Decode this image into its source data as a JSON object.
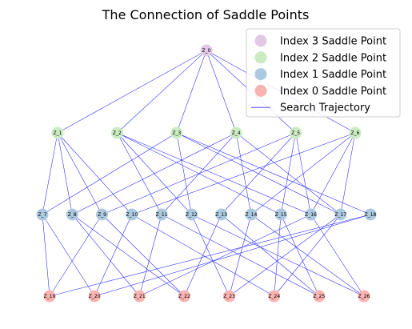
{
  "title": "The Connection of Saddle Points",
  "colors": {
    "index3": "#e1c9e6",
    "index2": "#cbebc3",
    "index1": "#adc9e0",
    "index0": "#f9b3b0",
    "edge": "#3333ff"
  },
  "legend": [
    {
      "label": "Index 3 Saddle Point",
      "kind": "marker",
      "color_key": "index3"
    },
    {
      "label": "Index 2 Saddle Point",
      "kind": "marker",
      "color_key": "index2"
    },
    {
      "label": "Index 1 Saddle Point",
      "kind": "marker",
      "color_key": "index1"
    },
    {
      "label": "Index 0 Saddle Point",
      "kind": "marker",
      "color_key": "index0"
    },
    {
      "label": "Search Trajectory",
      "kind": "line",
      "color_key": "edge"
    }
  ],
  "levels": [
    {
      "index": 3,
      "color_key": "index3",
      "nodes": [
        "Z_0"
      ]
    },
    {
      "index": 2,
      "color_key": "index2",
      "nodes": [
        "Z_1",
        "Z_2",
        "Z_3",
        "Z_4",
        "Z_5",
        "Z_6"
      ]
    },
    {
      "index": 1,
      "color_key": "index1",
      "nodes": [
        "Z_7",
        "Z_8",
        "Z_9",
        "Z_10",
        "Z_11",
        "Z_12",
        "Z_13",
        "Z_14",
        "Z_15",
        "Z_16",
        "Z_17",
        "Z_18"
      ]
    },
    {
      "index": 0,
      "color_key": "index0",
      "nodes": [
        "Z_19",
        "Z_20",
        "Z_21",
        "Z_22",
        "Z_23",
        "Z_24",
        "Z_25",
        "Z_26"
      ]
    }
  ],
  "edges": [
    [
      "Z_0",
      "Z_1"
    ],
    [
      "Z_0",
      "Z_2"
    ],
    [
      "Z_0",
      "Z_3"
    ],
    [
      "Z_0",
      "Z_4"
    ],
    [
      "Z_0",
      "Z_5"
    ],
    [
      "Z_0",
      "Z_6"
    ],
    [
      "Z_1",
      "Z_7"
    ],
    [
      "Z_1",
      "Z_8"
    ],
    [
      "Z_1",
      "Z_9"
    ],
    [
      "Z_1",
      "Z_10"
    ],
    [
      "Z_2",
      "Z_11"
    ],
    [
      "Z_2",
      "Z_12"
    ],
    [
      "Z_2",
      "Z_15"
    ],
    [
      "Z_2",
      "Z_16"
    ],
    [
      "Z_3",
      "Z_7"
    ],
    [
      "Z_3",
      "Z_12"
    ],
    [
      "Z_3",
      "Z_17"
    ],
    [
      "Z_3",
      "Z_18"
    ],
    [
      "Z_4",
      "Z_8"
    ],
    [
      "Z_4",
      "Z_11"
    ],
    [
      "Z_4",
      "Z_14"
    ],
    [
      "Z_4",
      "Z_17"
    ],
    [
      "Z_5",
      "Z_9"
    ],
    [
      "Z_5",
      "Z_13"
    ],
    [
      "Z_5",
      "Z_15"
    ],
    [
      "Z_5",
      "Z_16"
    ],
    [
      "Z_6",
      "Z_10"
    ],
    [
      "Z_6",
      "Z_14"
    ],
    [
      "Z_6",
      "Z_16"
    ],
    [
      "Z_6",
      "Z_17"
    ],
    [
      "Z_7",
      "Z_19"
    ],
    [
      "Z_7",
      "Z_20"
    ],
    [
      "Z_8",
      "Z_21"
    ],
    [
      "Z_8",
      "Z_22"
    ],
    [
      "Z_9",
      "Z_19"
    ],
    [
      "Z_9",
      "Z_22"
    ],
    [
      "Z_10",
      "Z_20"
    ],
    [
      "Z_10",
      "Z_24"
    ],
    [
      "Z_11",
      "Z_21"
    ],
    [
      "Z_11",
      "Z_25"
    ],
    [
      "Z_12",
      "Z_23"
    ],
    [
      "Z_12",
      "Z_26"
    ],
    [
      "Z_13",
      "Z_22"
    ],
    [
      "Z_13",
      "Z_25"
    ],
    [
      "Z_14",
      "Z_23"
    ],
    [
      "Z_14",
      "Z_26"
    ],
    [
      "Z_15",
      "Z_24"
    ],
    [
      "Z_15",
      "Z_25"
    ],
    [
      "Z_16",
      "Z_21"
    ],
    [
      "Z_16",
      "Z_26"
    ],
    [
      "Z_17",
      "Z_23"
    ],
    [
      "Z_17",
      "Z_24"
    ],
    [
      "Z_18",
      "Z_19"
    ],
    [
      "Z_18",
      "Z_20"
    ]
  ]
}
